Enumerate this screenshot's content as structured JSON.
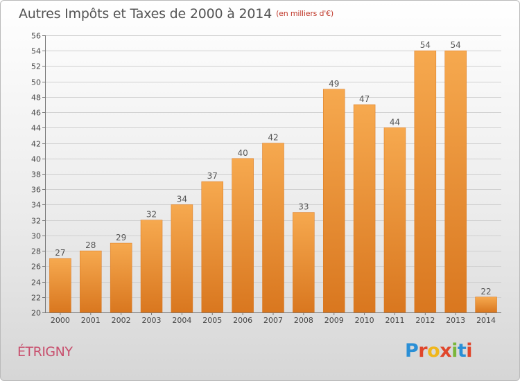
{
  "title": "Autres Impôts et Taxes de 2000 à 2014",
  "subtitle": "(en milliers d'€)",
  "commune": "ÉTRIGNY",
  "logo": {
    "text": "Proxiti",
    "letters": [
      {
        "ch": "P",
        "color": "#2a8fd6"
      },
      {
        "ch": "r",
        "color": "#e0462b"
      },
      {
        "ch": "o",
        "color": "#f0b61c"
      },
      {
        "ch": "x",
        "color": "#e0462b"
      },
      {
        "ch": "i",
        "color": "#7ab63a"
      },
      {
        "ch": "t",
        "color": "#2a8fd6"
      },
      {
        "ch": "i",
        "color": "#e0462b"
      }
    ]
  },
  "colors": {
    "bar_light": "#f6a94f",
    "bar_dark": "#d9771f",
    "grid": "#cfcfcf"
  },
  "chart_data": {
    "type": "bar",
    "categories": [
      "2000",
      "2001",
      "2002",
      "2003",
      "2004",
      "2005",
      "2006",
      "2007",
      "2008",
      "2009",
      "2010",
      "2011",
      "2012",
      "2013",
      "2014"
    ],
    "values": [
      27,
      28,
      29,
      32,
      34,
      37,
      40,
      42,
      33,
      49,
      47,
      44,
      54,
      54,
      22
    ],
    "ylim": [
      20,
      56
    ],
    "yticks": [
      20,
      22,
      24,
      26,
      28,
      30,
      32,
      34,
      36,
      38,
      40,
      42,
      44,
      46,
      48,
      50,
      52,
      54,
      56
    ],
    "grid": true
  }
}
